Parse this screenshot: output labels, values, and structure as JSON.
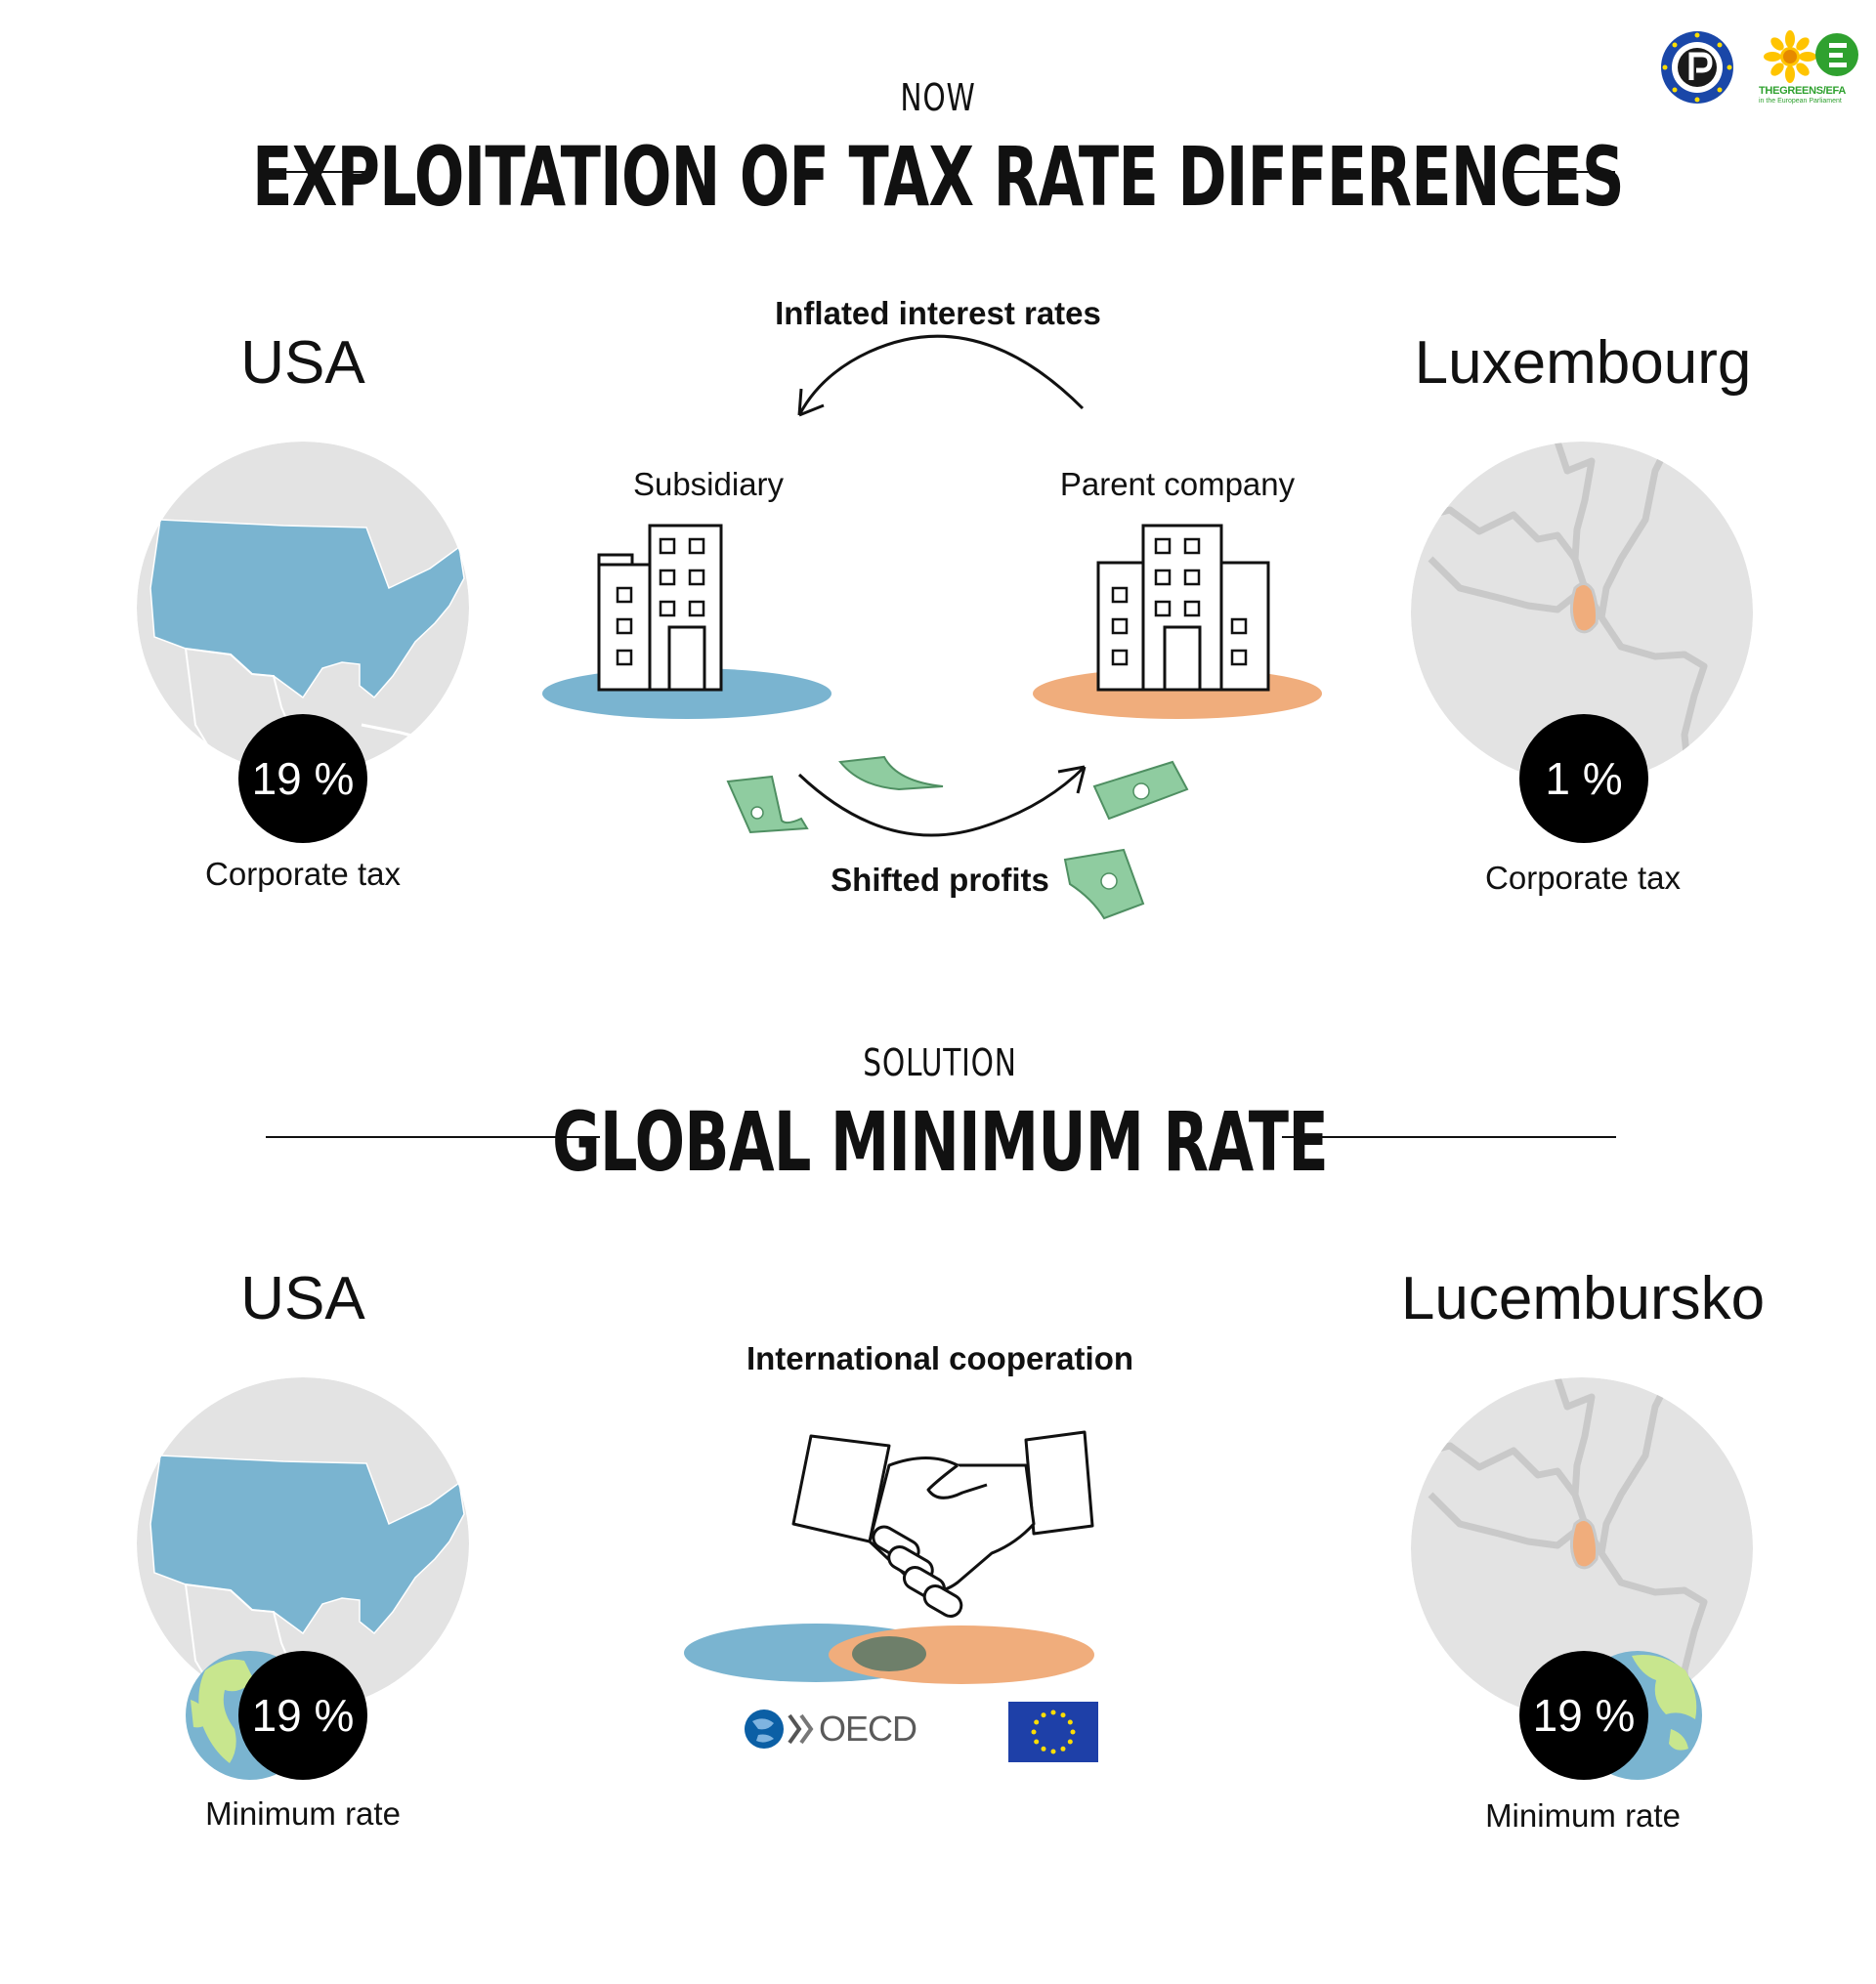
{
  "logos": {
    "pirate_logo": "pirate-party-logo",
    "greens_text": "THEGREENS/EFA",
    "greens_subtext": "in the European Parliament"
  },
  "now": {
    "eyebrow": "NOW",
    "title": "EXPLOITATION OF TAX RATE DIFFERENCES",
    "left": {
      "country": "USA",
      "rate": "19 %",
      "rate_label": "Corporate tax"
    },
    "right": {
      "country": "Luxembourg",
      "rate": "1 %",
      "rate_label": "Corporate tax"
    },
    "flow_top": "Inflated interest rates",
    "flow_bottom": "Shifted profits",
    "subsidiary": "Subsidiary",
    "parent": "Parent company"
  },
  "solution": {
    "eyebrow": "SOLUTION",
    "title": "GLOBAL MINIMUM RATE",
    "left": {
      "country": "USA",
      "rate": "19 %",
      "rate_label": "Minimum rate"
    },
    "right": {
      "country": "Lucembursko",
      "rate": "19 %",
      "rate_label": "Minimum rate"
    },
    "cooperation": "International cooperation",
    "oecd": "OECD"
  },
  "colors": {
    "blue": "#7ab4d0",
    "orange": "#f0ad7c",
    "grey": "#e3e3e3",
    "land_green": "#c8e68e",
    "eu_blue": "#1e40a8",
    "eu_star": "#ffde00",
    "money": "#8fcca0"
  }
}
